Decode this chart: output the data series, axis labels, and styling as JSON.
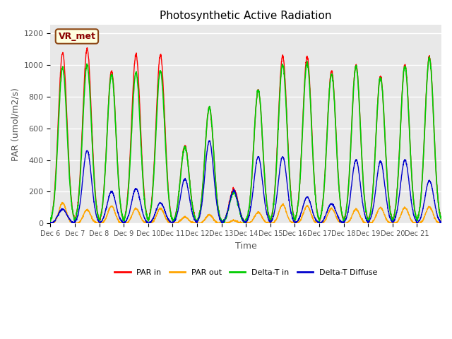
{
  "title": "Photosynthetic Active Radiation",
  "ylabel": "PAR (umol/m2/s)",
  "xlabel": "Time",
  "annotation": "VR_met",
  "ylim": [
    0,
    1250
  ],
  "legend": [
    "PAR in",
    "PAR out",
    "Delta-T in",
    "Delta-T Diffuse"
  ],
  "colors": {
    "PAR in": "#ff0000",
    "PAR out": "#ffa500",
    "Delta-T in": "#00cc00",
    "Delta-T Diffuse": "#0000cc"
  },
  "xtick_labels": [
    "Dec 6",
    "Dec 7",
    "Dec 8",
    "Dec 9",
    "Dec 10",
    "Dec 11",
    "Dec 12",
    "Dec 13",
    "Dec 14",
    "Dec 15",
    "Dec 16",
    "Dec 17",
    "Dec 18",
    "Dec 19",
    "Dec 20",
    "Dec 21"
  ],
  "background_color": "#e8e8e8",
  "plot_bg_color": "#e8e8e8",
  "grid_color": "#ffffff",
  "fig_bg": "#ffffff",
  "par_in_peaks": [
    1075,
    1100,
    960,
    1065,
    1060,
    490,
    730,
    215,
    840,
    1055,
    1050,
    960,
    1000,
    930,
    1000,
    1050
  ],
  "par_out_peaks": [
    130,
    85,
    110,
    95,
    95,
    40,
    55,
    20,
    70,
    120,
    110,
    95,
    90,
    100,
    100,
    105
  ],
  "delta_t_peaks": [
    980,
    1000,
    940,
    950,
    960,
    480,
    730,
    195,
    840,
    1000,
    1010,
    940,
    990,
    920,
    990,
    1040
  ],
  "delta_d_peaks": [
    90,
    460,
    200,
    220,
    130,
    280,
    520,
    205,
    420,
    420,
    165,
    125,
    400,
    390,
    400,
    270
  ]
}
